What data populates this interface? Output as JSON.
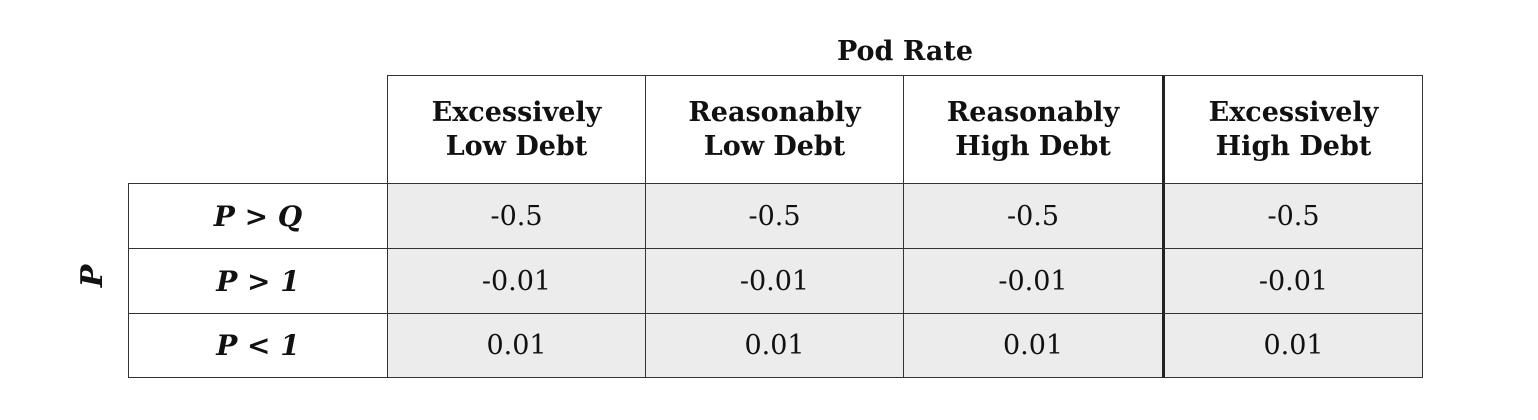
{
  "table": {
    "column_group_title": "Pod Rate",
    "row_group_title": "P",
    "columns": [
      {
        "line1": "Excessively",
        "line2": "Low Debt"
      },
      {
        "line1": "Reasonably",
        "line2": "Low Debt"
      },
      {
        "line1": "Reasonably",
        "line2": "High Debt"
      },
      {
        "line1": "Excessively",
        "line2": "High Debt"
      }
    ],
    "rows": [
      {
        "label": "P > Q",
        "values": [
          "-0.5",
          "-0.5",
          "-0.5",
          "-0.5"
        ]
      },
      {
        "label": "P > 1",
        "values": [
          "-0.01",
          "-0.01",
          "-0.01",
          "-0.01"
        ]
      },
      {
        "label": "P < 1",
        "values": [
          "0.01",
          "0.01",
          "0.01",
          "0.01"
        ]
      }
    ]
  }
}
